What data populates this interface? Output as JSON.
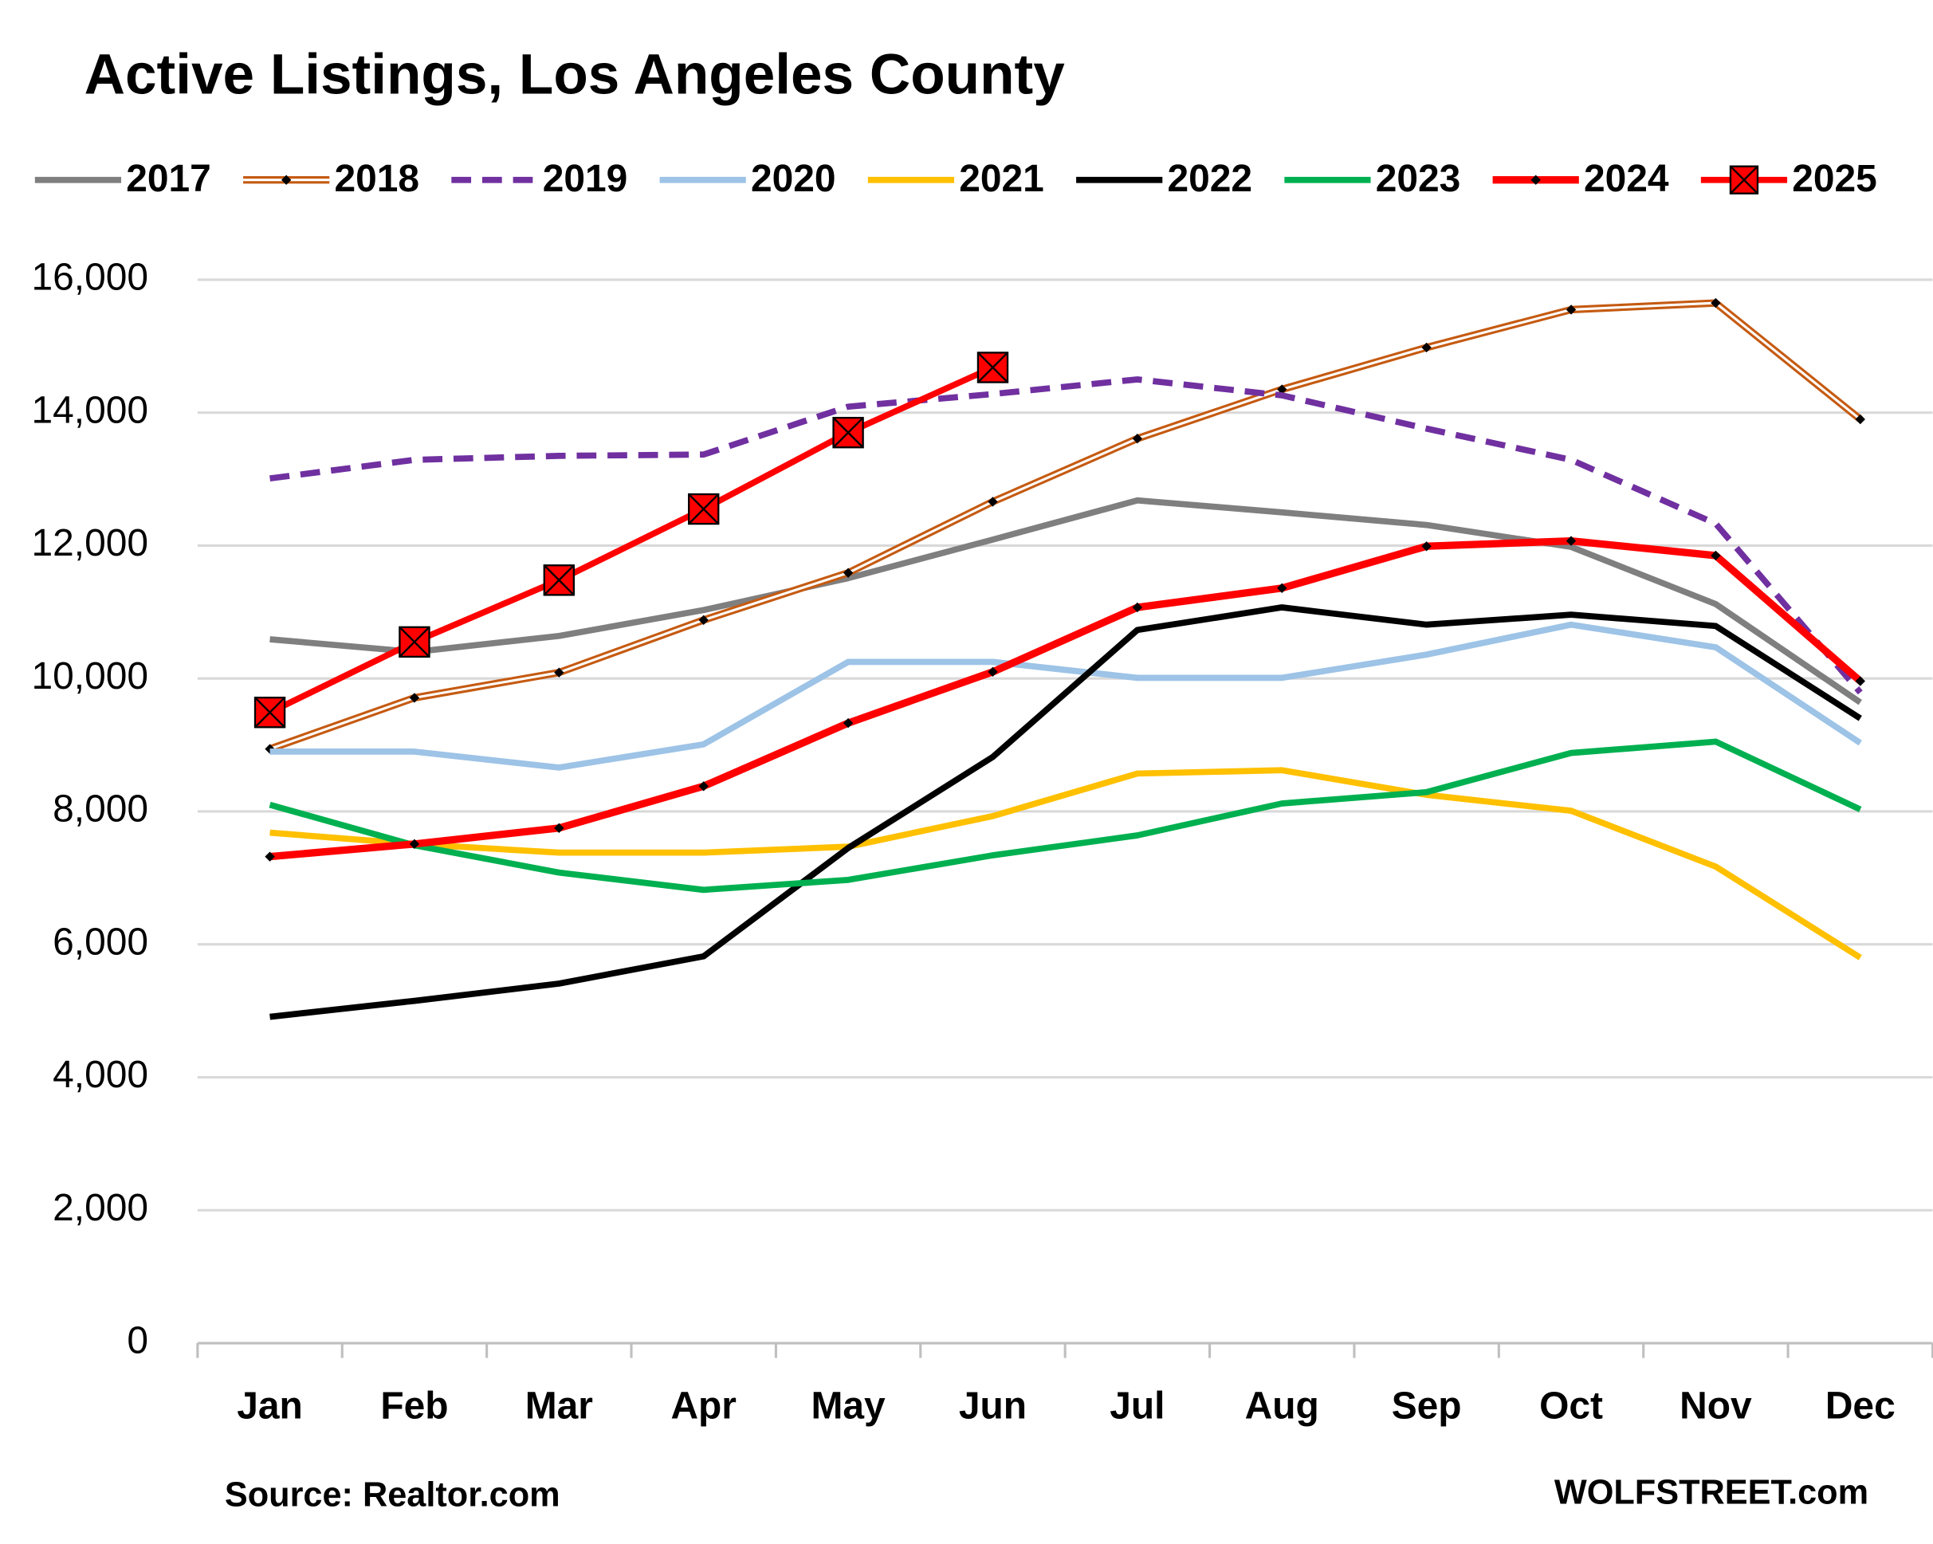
{
  "chart_data": {
    "type": "line",
    "title": "Active Listings, Los Angeles County",
    "source": "Source: Realtor.com",
    "credit": "WOLFSTREET.com",
    "categories": [
      "Jan",
      "Feb",
      "Mar",
      "Apr",
      "May",
      "Jun",
      "Jul",
      "Aug",
      "Sep",
      "Oct",
      "Nov",
      "Dec"
    ],
    "ylim": [
      0,
      16000
    ],
    "yticks": [
      0,
      {
        "value": 2000,
        "label": "2,000"
      },
      {
        "value": 4000,
        "label": "4,000"
      },
      {
        "value": 6000,
        "label": "6,000"
      },
      {
        "value": 8000,
        "label": "8,000"
      },
      {
        "value": 10000,
        "label": "10,000"
      },
      {
        "value": 12000,
        "label": "12,000"
      },
      {
        "value": 14000,
        "label": "14,000"
      },
      {
        "value": 16000,
        "label": "16,000"
      }
    ],
    "grid": true,
    "legend": "top",
    "series": [
      {
        "name": "2017",
        "color": "#7f7f7f",
        "values": [
          10590,
          10400,
          10640,
          11030,
          11510,
          12090,
          12680,
          12500,
          12310,
          11980,
          11120,
          9640
        ]
      },
      {
        "name": "2018",
        "color": "#c55a11",
        "style": "double",
        "marker": "dot",
        "values": [
          8940,
          9710,
          10090,
          10880,
          11590,
          12660,
          13610,
          14350,
          14980,
          15550,
          15650,
          13900
        ]
      },
      {
        "name": "2019",
        "color": "#7030a0",
        "style": "dashed",
        "values": [
          13010,
          13290,
          13350,
          13370,
          14090,
          14280,
          14500,
          14260,
          13760,
          13290,
          12330,
          9790
        ]
      },
      {
        "name": "2020",
        "color": "#9dc3e6",
        "values": [
          8900,
          8900,
          8660,
          9010,
          10250,
          10250,
          10010,
          10010,
          10360,
          10810,
          10470,
          9030
        ]
      },
      {
        "name": "2021",
        "color": "#ffc000",
        "values": [
          7680,
          7510,
          7380,
          7380,
          7470,
          7930,
          8570,
          8620,
          8250,
          8010,
          7170,
          5800
        ]
      },
      {
        "name": "2022",
        "color": "#000000",
        "values": [
          4910,
          5150,
          5410,
          5820,
          7450,
          8820,
          10730,
          11070,
          10810,
          10960,
          10790,
          9400
        ]
      },
      {
        "name": "2023",
        "color": "#00b050",
        "values": [
          8100,
          7490,
          7080,
          6820,
          6970,
          7340,
          7640,
          8120,
          8290,
          8880,
          9050,
          8030
        ]
      },
      {
        "name": "2024",
        "color": "#ff0000",
        "marker": "dot",
        "values": [
          7320,
          7510,
          7750,
          8380,
          9330,
          10100,
          11070,
          11360,
          11990,
          12070,
          11850,
          9960
        ]
      },
      {
        "name": "2025",
        "color": "#ff0000",
        "marker": "square-x",
        "values": [
          9490,
          10550,
          11480,
          12550,
          13700,
          14680,
          null,
          null,
          null,
          null,
          null,
          null
        ]
      }
    ]
  }
}
